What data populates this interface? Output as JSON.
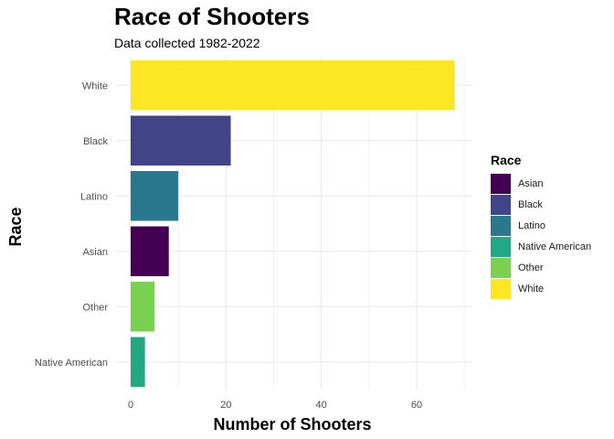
{
  "chart_data": {
    "type": "bar",
    "orientation": "horizontal",
    "title": "Race of Shooters",
    "subtitle": "Data collected 1982-2022",
    "xlabel": "Number of Shooters",
    "ylabel": "Race",
    "categories": [
      "White",
      "Black",
      "Latino",
      "Asian",
      "Other",
      "Native American"
    ],
    "values": [
      68,
      21,
      10,
      8,
      5,
      3
    ],
    "xlim": [
      0,
      70
    ],
    "xticks": [
      0,
      20,
      40,
      60
    ],
    "grid": true,
    "legend": {
      "title": "Race",
      "position": "right",
      "entries": [
        "Asian",
        "Black",
        "Latino",
        "Native American",
        "Other",
        "White"
      ]
    },
    "colors": {
      "Asian": "#440154",
      "Black": "#414487",
      "Latino": "#2a788e",
      "Native American": "#22a884",
      "Other": "#7ad151",
      "White": "#fde725"
    }
  }
}
